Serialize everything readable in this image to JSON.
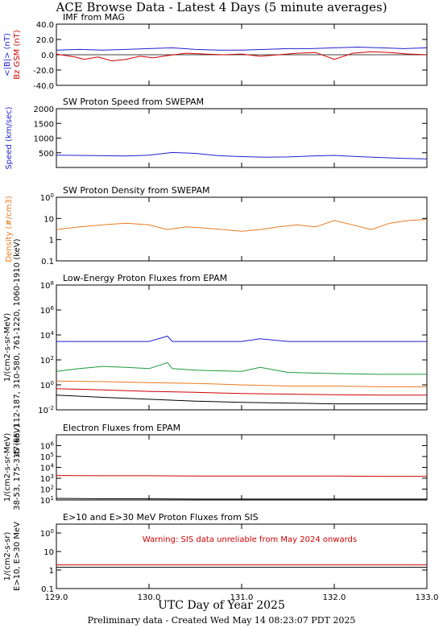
{
  "page": {
    "title": "ACE Browse Data - Latest 4 Days (5 minute averages)",
    "x_axis_title": "UTC Day of Year 2025",
    "footer": "Preliminary data - Created Wed May 14 08:23:07 PDT 2025"
  },
  "chart_data": [
    {
      "type": "line",
      "title": "IMF from MAG",
      "ylabel_parts": [
        {
          "text": "<|B|> (nT)",
          "color": "#1f1fd0"
        },
        {
          "text": "Bz GSM (nT)",
          "color": "#d00000"
        }
      ],
      "ylim": [
        -40,
        40
      ],
      "yscale": "linear",
      "yticks": [
        "-40.0",
        "-20.0",
        "0.0",
        "20.0",
        "40.0"
      ],
      "ytick_values": [
        -40,
        -20,
        0,
        20,
        40
      ],
      "zero_line": true,
      "series": [
        {
          "name": "<|B|>",
          "color": "#1f1fd0",
          "x": [
            129.0,
            129.25,
            129.5,
            129.75,
            130.0,
            130.25,
            130.5,
            130.75,
            131.0,
            131.25,
            131.5,
            131.75,
            132.0,
            132.25,
            132.5,
            132.75,
            133.0
          ],
          "values": [
            6,
            7,
            6,
            7,
            8,
            9,
            7,
            6,
            6,
            7,
            8,
            8,
            9,
            10,
            9,
            8,
            9
          ]
        },
        {
          "name": "Bz GSM",
          "color": "#d00000",
          "x": [
            129.0,
            129.1,
            129.2,
            129.3,
            129.45,
            129.6,
            129.75,
            129.9,
            130.05,
            130.2,
            130.4,
            130.6,
            130.8,
            131.0,
            131.2,
            131.4,
            131.6,
            131.8,
            132.0,
            132.2,
            132.4,
            132.6,
            132.8,
            133.0
          ],
          "values": [
            1,
            -1,
            -3,
            -6,
            -3,
            -8,
            -6,
            -2,
            -4,
            -1,
            2,
            1,
            0,
            1,
            -2,
            0,
            2,
            3,
            -6,
            2,
            4,
            3,
            1,
            0
          ]
        }
      ]
    },
    {
      "type": "line",
      "title": "SW Proton Speed from SWEPAM",
      "ylabel_parts": [
        {
          "text": "Speed (km/sec)",
          "color": "#1f1fd0"
        }
      ],
      "ylim": [
        0,
        2000
      ],
      "yscale": "linear",
      "yticks": [
        "500",
        "1000",
        "1500",
        "2000"
      ],
      "ytick_values": [
        500,
        1000,
        1500,
        2000
      ],
      "series": [
        {
          "name": "Speed",
          "color": "#1f1fd0",
          "x": [
            129.0,
            129.25,
            129.5,
            129.75,
            130.0,
            130.25,
            130.5,
            130.75,
            131.0,
            131.25,
            131.5,
            131.75,
            132.0,
            132.25,
            132.5,
            132.75,
            133.0
          ],
          "values": [
            420,
            410,
            400,
            390,
            420,
            510,
            480,
            400,
            370,
            350,
            360,
            390,
            410,
            370,
            340,
            310,
            290
          ]
        }
      ]
    },
    {
      "type": "line",
      "title": "SW Proton Density from SWEPAM",
      "ylabel_parts": [
        {
          "text": "Density (#/cm3)",
          "color": "#e87a1e"
        }
      ],
      "ylim": [
        0.1,
        100
      ],
      "yscale": "log",
      "yticks": [
        "0.1",
        "1",
        "10",
        "100"
      ],
      "ytick_values": [
        0.1,
        1,
        10,
        100
      ],
      "series": [
        {
          "name": "Density",
          "color": "#e87a1e",
          "x": [
            129.0,
            129.25,
            129.5,
            129.75,
            130.0,
            130.2,
            130.4,
            130.6,
            130.8,
            131.0,
            131.2,
            131.4,
            131.6,
            131.8,
            132.0,
            132.2,
            132.4,
            132.6,
            132.8,
            133.0
          ],
          "values": [
            3,
            4,
            5,
            6,
            5,
            3,
            4,
            3.5,
            3,
            2.5,
            3,
            4,
            5,
            4,
            8,
            5,
            3,
            6,
            8,
            9
          ]
        }
      ]
    },
    {
      "type": "line",
      "title": "Low-Energy Proton Fluxes from EPAM",
      "ylabel_parts": [
        {
          "text": "1/(cm2-s-sr-MeV)",
          "color": "#000000"
        },
        {
          "text": "47-65, 112-187, 310-580, 761-1220, 1060-1910 (keV)",
          "color": "#000000"
        }
      ],
      "ylim": [
        0.01,
        100000000
      ],
      "yscale": "log",
      "yticks": [
        "10-2",
        "100",
        "102",
        "104",
        "106",
        "108"
      ],
      "ytick_values": [
        0.01,
        1,
        100,
        10000,
        1000000,
        100000000
      ],
      "series": [
        {
          "name": "47-65",
          "color": "#1f1fd0",
          "x": [
            129.0,
            129.5,
            130.0,
            130.2,
            130.25,
            130.5,
            131.0,
            131.2,
            131.5,
            132.0,
            132.5,
            133.0
          ],
          "values": [
            3000,
            3000,
            3000,
            8000,
            3000,
            3000,
            3000,
            5000,
            3000,
            3000,
            3000,
            3000
          ]
        },
        {
          "name": "112-187",
          "color": "#1a9a3a",
          "x": [
            129.0,
            129.25,
            129.5,
            129.75,
            130.0,
            130.2,
            130.25,
            130.5,
            131.0,
            131.2,
            131.5,
            132.0,
            132.5,
            133.0
          ],
          "values": [
            12,
            20,
            30,
            25,
            20,
            60,
            20,
            15,
            12,
            25,
            10,
            8,
            7,
            7
          ]
        },
        {
          "name": "310-580",
          "color": "#e87a1e",
          "x": [
            129.0,
            129.5,
            130.0,
            130.5,
            131.0,
            131.5,
            132.0,
            132.5,
            133.0
          ],
          "values": [
            2,
            1.8,
            1.5,
            1.3,
            1,
            0.8,
            0.8,
            0.7,
            0.7
          ]
        },
        {
          "name": "761-1220",
          "color": "#d00000",
          "x": [
            129.0,
            129.5,
            130.0,
            130.5,
            131.0,
            131.5,
            132.0,
            132.5,
            133.0
          ],
          "values": [
            0.5,
            0.4,
            0.3,
            0.25,
            0.2,
            0.18,
            0.16,
            0.15,
            0.15
          ]
        },
        {
          "name": "1060-1910",
          "color": "#000000",
          "x": [
            129.0,
            129.5,
            130.0,
            130.5,
            131.0,
            131.5,
            132.0,
            132.5,
            133.0
          ],
          "values": [
            0.15,
            0.1,
            0.07,
            0.05,
            0.04,
            0.035,
            0.03,
            0.03,
            0.03
          ]
        }
      ]
    },
    {
      "type": "line",
      "title": "Electron Fluxes from EPAM",
      "ylabel_parts": [
        {
          "text": "1/(cm2-s-sr-MeV)",
          "color": "#000000"
        },
        {
          "text": "38-53, 175-315 (keV)",
          "color": "#000000"
        }
      ],
      "ylim": [
        10,
        10000000
      ],
      "yscale": "log",
      "yticks": [
        "101",
        "102",
        "103",
        "104",
        "105",
        "106"
      ],
      "ytick_values": [
        10,
        100,
        1000,
        10000,
        100000,
        1000000
      ],
      "series": [
        {
          "name": "38-53",
          "color": "#d00000",
          "x": [
            129.0,
            129.5,
            130.0,
            130.5,
            131.0,
            131.5,
            132.0,
            132.5,
            133.0
          ],
          "values": [
            1800,
            1700,
            1700,
            1600,
            1600,
            1600,
            1600,
            1500,
            1500
          ]
        },
        {
          "name": "175-315",
          "color": "#000000",
          "x": [
            129.0,
            129.5,
            130.0,
            130.5,
            131.0,
            131.5,
            132.0,
            132.5,
            133.0
          ],
          "values": [
            14,
            13,
            13,
            12,
            12,
            12,
            12,
            12,
            12
          ]
        }
      ]
    },
    {
      "type": "line",
      "title": "E>10 and E>30 MeV Proton Fluxes from SIS",
      "annotation": "Warning: SIS data unreliable from May 2024 onwards",
      "ylabel_parts": [
        {
          "text": "1/(cm2-s-sr)",
          "color": "#000000"
        },
        {
          "text": "E>10, E>30 MeV",
          "color": "#000000"
        }
      ],
      "ylim": [
        0.1,
        300
      ],
      "yscale": "log",
      "yticks": [
        "0.1",
        "1",
        "10",
        "100"
      ],
      "ytick_values": [
        0.1,
        1,
        10,
        100
      ],
      "series": [
        {
          "name": "E>10",
          "color": "#d00000",
          "x": [
            129.0,
            129.5,
            130.0,
            130.5,
            131.0,
            131.5,
            132.0,
            132.5,
            133.0
          ],
          "values": [
            1.9,
            1.9,
            1.9,
            1.9,
            1.9,
            1.9,
            1.9,
            1.9,
            1.9
          ]
        },
        {
          "name": "E>30",
          "color": "#000000",
          "x": [
            129.0,
            129.5,
            130.0,
            130.5,
            131.0,
            131.5,
            132.0,
            132.5,
            133.0
          ],
          "values": [
            1.4,
            1.4,
            1.4,
            1.4,
            1.4,
            1.4,
            1.4,
            1.4,
            1.4
          ]
        }
      ]
    }
  ],
  "x_axis": {
    "xlim": [
      129.0,
      133.0
    ],
    "ticks": [
      "129.0",
      "130.0",
      "131.0",
      "132.0",
      "133.0"
    ],
    "tick_values": [
      129.0,
      130.0,
      131.0,
      132.0,
      133.0
    ]
  }
}
